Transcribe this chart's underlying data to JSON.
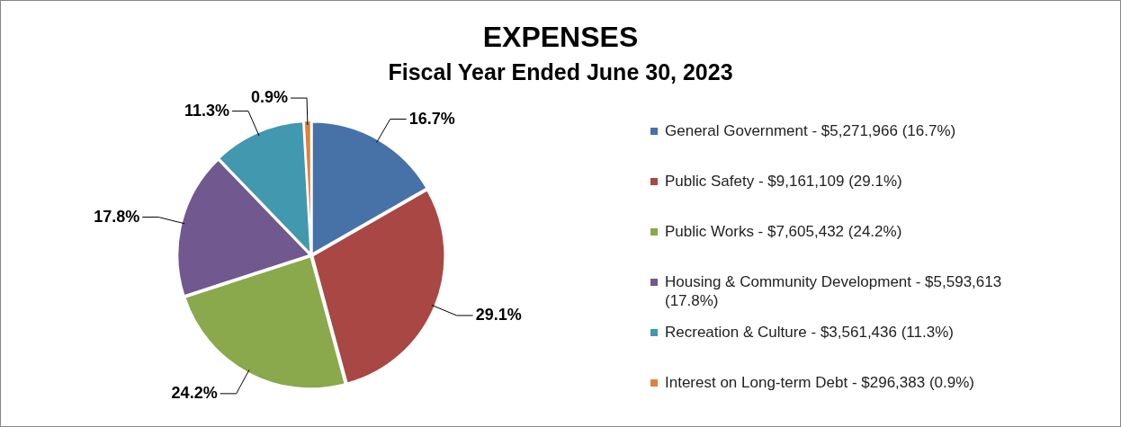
{
  "chart_data": {
    "type": "pie",
    "title": "EXPENSES",
    "subtitle": "Fiscal Year Ended June 30, 2023",
    "categories": [
      "General Government - $5,271,966 (16.7%)",
      "Public Safety - $9,161,109 (29.1%)",
      "Public Works - $7,605,432 (24.2%)",
      "Housing & Community Development - $5,593,613 (17.8%)",
      "Recreation & Culture - $3,561,436 (11.3%)",
      "Interest on Long-term Debt - $296,383 (0.9%)"
    ],
    "values": [
      16.7,
      29.1,
      24.2,
      17.8,
      11.3,
      0.9
    ],
    "colors": [
      "#4672a8",
      "#a84744",
      "#8aa84c",
      "#71588f",
      "#4198af",
      "#db843d"
    ],
    "value_labels": [
      "16.7%",
      "29.1%",
      "24.2%",
      "17.8%",
      "11.3%",
      "0.9%"
    ],
    "legend": "right"
  }
}
